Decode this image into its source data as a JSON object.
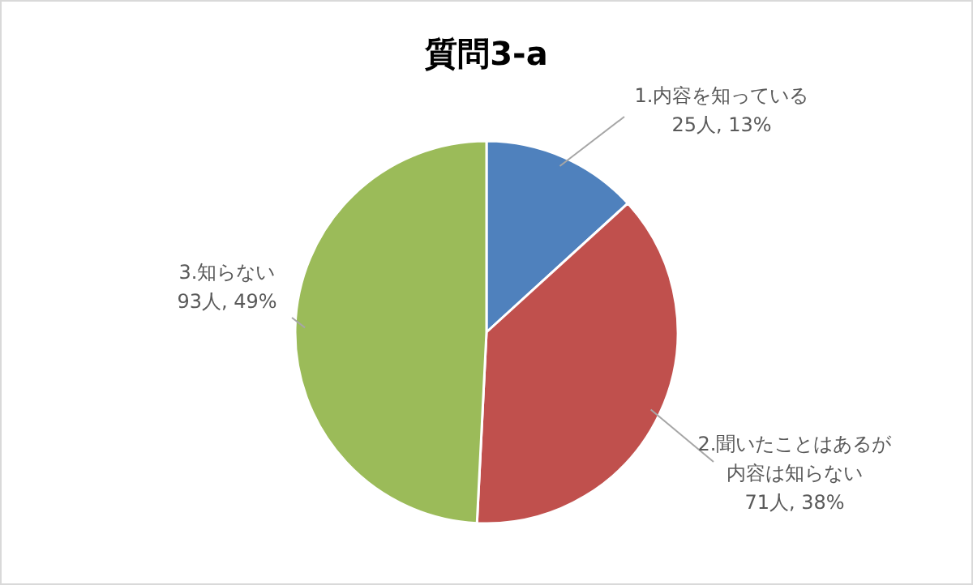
{
  "chart_data": {
    "type": "pie",
    "title": "質問3-a",
    "categories": [
      "1.内容を知っている",
      "2.聞いたことはあるが内容は知らない",
      "3.知らない"
    ],
    "values": [
      25,
      71,
      93
    ],
    "value_labels": [
      "25人, 13%",
      "71人, 38%",
      "93人, 49%"
    ],
    "colors": [
      "#4f81bd",
      "#c0504d",
      "#9bbb59"
    ]
  }
}
